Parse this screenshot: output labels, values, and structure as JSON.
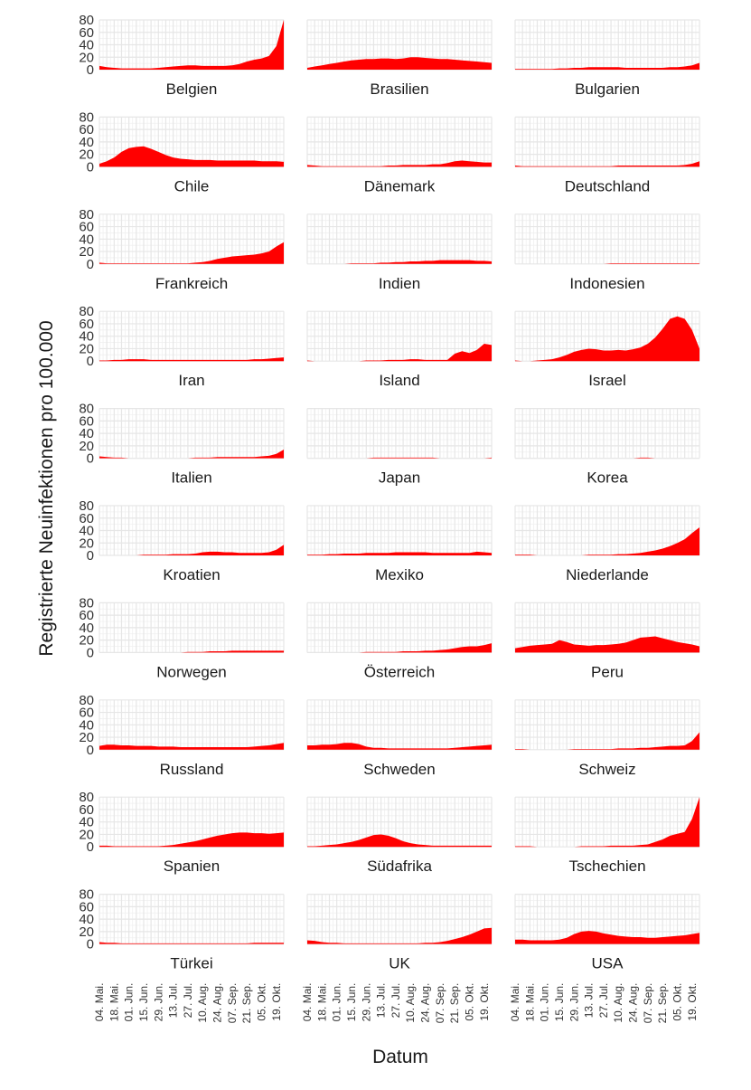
{
  "chart_data": {
    "type": "area",
    "ylabel": "Registrierte Neuinfektionen pro 100.000",
    "xlabel": "Datum",
    "ylim": [
      0,
      80
    ],
    "y_ticks": [
      "0",
      "20",
      "40",
      "60",
      "80"
    ],
    "x_ticks": [
      "04. Mai.",
      "18. Mai.",
      "01. Jun.",
      "15. Jun.",
      "29. Jun.",
      "13. Jul.",
      "27. Jul.",
      "10. Aug.",
      "24. Aug.",
      "07. Sep.",
      "21. Sep.",
      "05. Okt.",
      "19. Okt."
    ],
    "fill_color": "#ff0000",
    "x_index_note": "x values are week indices 0..25 starting 04. Mai.",
    "panels": [
      {
        "name": "Belgien",
        "values": [
          6,
          4,
          3,
          2,
          2,
          2,
          2,
          2,
          3,
          4,
          5,
          6,
          7,
          7,
          6,
          6,
          6,
          6,
          7,
          9,
          13,
          16,
          18,
          22,
          38,
          80
        ]
      },
      {
        "name": "Brasilien",
        "values": [
          3,
          5,
          7,
          9,
          11,
          13,
          15,
          16,
          17,
          17,
          18,
          18,
          17,
          18,
          20,
          20,
          19,
          18,
          17,
          17,
          16,
          15,
          14,
          13,
          12,
          11
        ]
      },
      {
        "name": "Bulgarien",
        "values": [
          1,
          1,
          1,
          1,
          1,
          1,
          2,
          2,
          3,
          3,
          4,
          4,
          4,
          4,
          4,
          3,
          3,
          3,
          3,
          3,
          3,
          4,
          4,
          5,
          7,
          11
        ]
      },
      {
        "name": "Chile",
        "values": [
          5,
          9,
          15,
          24,
          30,
          32,
          33,
          29,
          24,
          19,
          15,
          13,
          12,
          11,
          11,
          11,
          10,
          10,
          10,
          10,
          10,
          10,
          9,
          9,
          9,
          8
        ]
      },
      {
        "name": "Dänemark",
        "values": [
          3,
          2,
          1,
          1,
          1,
          1,
          1,
          1,
          1,
          1,
          1,
          2,
          2,
          3,
          3,
          3,
          3,
          4,
          4,
          6,
          9,
          10,
          9,
          8,
          7,
          7
        ]
      },
      {
        "name": "Deutschland",
        "values": [
          2,
          1,
          1,
          1,
          1,
          1,
          1,
          1,
          1,
          1,
          1,
          1,
          1,
          1,
          2,
          2,
          2,
          2,
          2,
          2,
          2,
          2,
          2,
          3,
          5,
          9
        ]
      },
      {
        "name": "Frankreich",
        "values": [
          2,
          1,
          1,
          1,
          1,
          1,
          1,
          1,
          1,
          1,
          1,
          1,
          1,
          2,
          3,
          5,
          8,
          10,
          12,
          13,
          14,
          15,
          17,
          20,
          28,
          35
        ]
      },
      {
        "name": "Indien",
        "values": [
          0,
          0,
          0,
          0,
          0,
          0,
          1,
          1,
          1,
          1,
          2,
          2,
          3,
          3,
          4,
          4,
          5,
          5,
          6,
          6,
          6,
          6,
          6,
          5,
          5,
          4
        ]
      },
      {
        "name": "Indonesien",
        "values": [
          0,
          0,
          0,
          0,
          0,
          0,
          0,
          0,
          0,
          0,
          0,
          0,
          0,
          1,
          1,
          1,
          1,
          1,
          1,
          1,
          1,
          1,
          1,
          1,
          1,
          1
        ]
      },
      {
        "name": "Iran",
        "values": [
          1,
          1,
          2,
          2,
          3,
          3,
          3,
          2,
          2,
          2,
          2,
          2,
          2,
          2,
          2,
          2,
          2,
          2,
          2,
          2,
          2,
          3,
          3,
          4,
          5,
          6
        ]
      },
      {
        "name": "Island",
        "values": [
          1,
          0,
          0,
          0,
          0,
          0,
          0,
          0,
          1,
          1,
          1,
          2,
          2,
          2,
          3,
          3,
          2,
          2,
          2,
          2,
          12,
          16,
          13,
          18,
          28,
          26
        ]
      },
      {
        "name": "Israel",
        "values": [
          1,
          0,
          0,
          1,
          2,
          3,
          6,
          10,
          15,
          18,
          20,
          19,
          17,
          17,
          18,
          17,
          19,
          22,
          28,
          38,
          52,
          68,
          72,
          68,
          50,
          20
        ]
      },
      {
        "name": "Italien",
        "values": [
          3,
          2,
          1,
          1,
          0,
          0,
          0,
          0,
          0,
          0,
          0,
          0,
          0,
          1,
          1,
          1,
          2,
          2,
          2,
          2,
          2,
          2,
          3,
          4,
          7,
          14
        ]
      },
      {
        "name": "Japan",
        "values": [
          0,
          0,
          0,
          0,
          0,
          0,
          0,
          0,
          0,
          1,
          1,
          1,
          1,
          1,
          1,
          1,
          1,
          1,
          0,
          0,
          0,
          0,
          0,
          0,
          0,
          1
        ]
      },
      {
        "name": "Korea",
        "values": [
          0,
          0,
          0,
          0,
          0,
          0,
          0,
          0,
          0,
          0,
          0,
          0,
          0,
          0,
          0,
          0,
          0,
          1,
          1,
          0,
          0,
          0,
          0,
          0,
          0,
          0
        ]
      },
      {
        "name": "Kroatien",
        "values": [
          0,
          0,
          0,
          0,
          0,
          0,
          1,
          1,
          1,
          1,
          2,
          2,
          2,
          3,
          5,
          6,
          6,
          5,
          5,
          4,
          4,
          4,
          4,
          5,
          9,
          17
        ]
      },
      {
        "name": "Mexiko",
        "values": [
          1,
          1,
          1,
          2,
          2,
          3,
          3,
          3,
          4,
          4,
          4,
          4,
          5,
          5,
          5,
          5,
          5,
          4,
          4,
          4,
          4,
          4,
          4,
          6,
          5,
          4
        ]
      },
      {
        "name": "Niederlande",
        "values": [
          1,
          1,
          1,
          0,
          0,
          0,
          0,
          0,
          0,
          0,
          1,
          1,
          1,
          1,
          2,
          2,
          3,
          4,
          6,
          8,
          11,
          15,
          20,
          26,
          36,
          45
        ]
      },
      {
        "name": "Norwegen",
        "values": [
          0,
          0,
          0,
          0,
          0,
          0,
          0,
          0,
          0,
          0,
          0,
          0,
          1,
          1,
          1,
          2,
          2,
          2,
          3,
          3,
          3,
          3,
          3,
          3,
          3,
          3
        ]
      },
      {
        "name": "Österreich",
        "values": [
          0,
          0,
          0,
          0,
          0,
          0,
          0,
          0,
          1,
          1,
          1,
          1,
          1,
          2,
          2,
          2,
          3,
          3,
          4,
          5,
          7,
          9,
          10,
          10,
          12,
          15
        ]
      },
      {
        "name": "Peru",
        "values": [
          7,
          9,
          11,
          12,
          13,
          14,
          20,
          17,
          13,
          12,
          11,
          12,
          12,
          13,
          14,
          16,
          20,
          24,
          25,
          26,
          23,
          20,
          17,
          15,
          13,
          10
        ]
      },
      {
        "name": "Russland",
        "values": [
          6,
          8,
          8,
          7,
          7,
          6,
          6,
          6,
          5,
          5,
          5,
          4,
          4,
          4,
          4,
          4,
          4,
          4,
          4,
          4,
          4,
          5,
          6,
          7,
          9,
          11
        ]
      },
      {
        "name": "Schweden",
        "values": [
          7,
          7,
          8,
          8,
          9,
          11,
          11,
          9,
          5,
          3,
          3,
          2,
          2,
          2,
          2,
          2,
          2,
          2,
          2,
          2,
          3,
          4,
          5,
          6,
          7,
          8
        ]
      },
      {
        "name": "Schweiz",
        "values": [
          1,
          1,
          0,
          0,
          0,
          0,
          0,
          0,
          1,
          1,
          1,
          1,
          1,
          1,
          2,
          2,
          2,
          3,
          3,
          4,
          5,
          6,
          6,
          7,
          14,
          28
        ]
      },
      {
        "name": "Spanien",
        "values": [
          2,
          2,
          1,
          1,
          1,
          1,
          1,
          1,
          1,
          2,
          3,
          5,
          7,
          9,
          12,
          15,
          18,
          20,
          22,
          23,
          23,
          22,
          22,
          21,
          22,
          23
        ]
      },
      {
        "name": "Südafrika",
        "values": [
          1,
          1,
          2,
          3,
          4,
          6,
          8,
          11,
          15,
          19,
          20,
          18,
          14,
          9,
          6,
          4,
          3,
          2,
          2,
          2,
          2,
          2,
          2,
          2,
          2,
          2
        ]
      },
      {
        "name": "Tschechien",
        "values": [
          1,
          1,
          1,
          0,
          0,
          0,
          0,
          0,
          0,
          1,
          1,
          1,
          1,
          2,
          2,
          2,
          2,
          3,
          4,
          8,
          12,
          18,
          21,
          24,
          45,
          80
        ]
      },
      {
        "name": "Türkei",
        "values": [
          3,
          2,
          2,
          1,
          1,
          1,
          1,
          1,
          1,
          1,
          1,
          1,
          1,
          1,
          1,
          1,
          1,
          1,
          1,
          1,
          1,
          2,
          2,
          2,
          2,
          2
        ]
      },
      {
        "name": "UK",
        "values": [
          6,
          5,
          3,
          2,
          2,
          1,
          1,
          1,
          1,
          1,
          1,
          1,
          1,
          1,
          1,
          1,
          2,
          2,
          3,
          5,
          8,
          11,
          15,
          20,
          25,
          26
        ]
      },
      {
        "name": "USA",
        "values": [
          7,
          7,
          6,
          6,
          6,
          6,
          7,
          10,
          16,
          20,
          21,
          20,
          17,
          15,
          13,
          12,
          11,
          11,
          10,
          10,
          11,
          12,
          13,
          14,
          16,
          18
        ]
      }
    ]
  }
}
